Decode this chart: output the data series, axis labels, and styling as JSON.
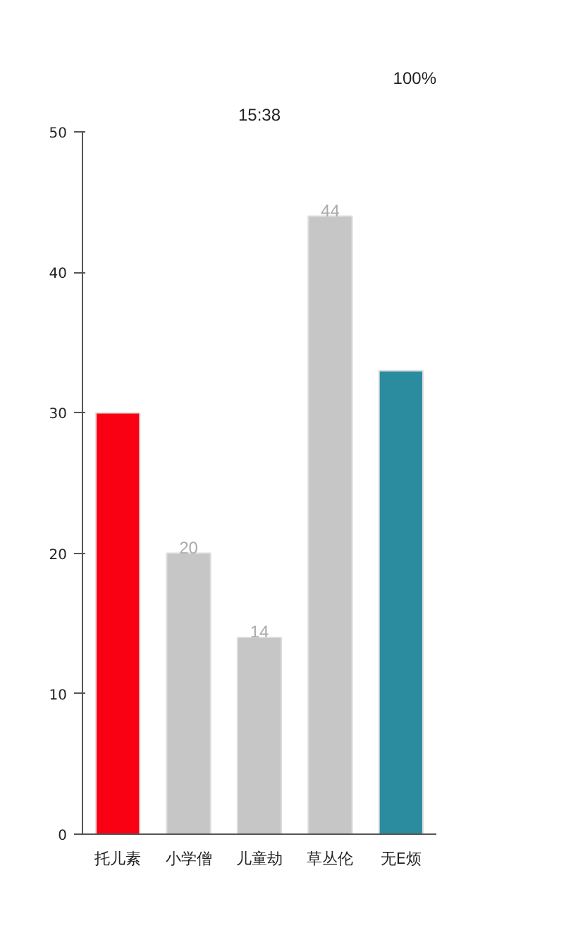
{
  "chart_data": {
    "type": "bar",
    "categories": [
      "托儿素",
      "小学僧",
      "儿童劫",
      "草丛伦",
      "无E烦"
    ],
    "values": [
      30,
      20,
      14,
      44,
      33
    ],
    "colors": [
      "#f90013",
      "#c6c6c6",
      "#c6c6c6",
      "#c6c6c6",
      "#2a8c9e"
    ],
    "value_labels": [
      null,
      "20",
      "14",
      "44",
      null
    ],
    "ylim": [
      0,
      50
    ],
    "yticks": [
      0,
      10,
      20,
      30,
      40,
      50
    ],
    "grid": false,
    "annotations": [
      "15:38",
      "100%"
    ]
  }
}
